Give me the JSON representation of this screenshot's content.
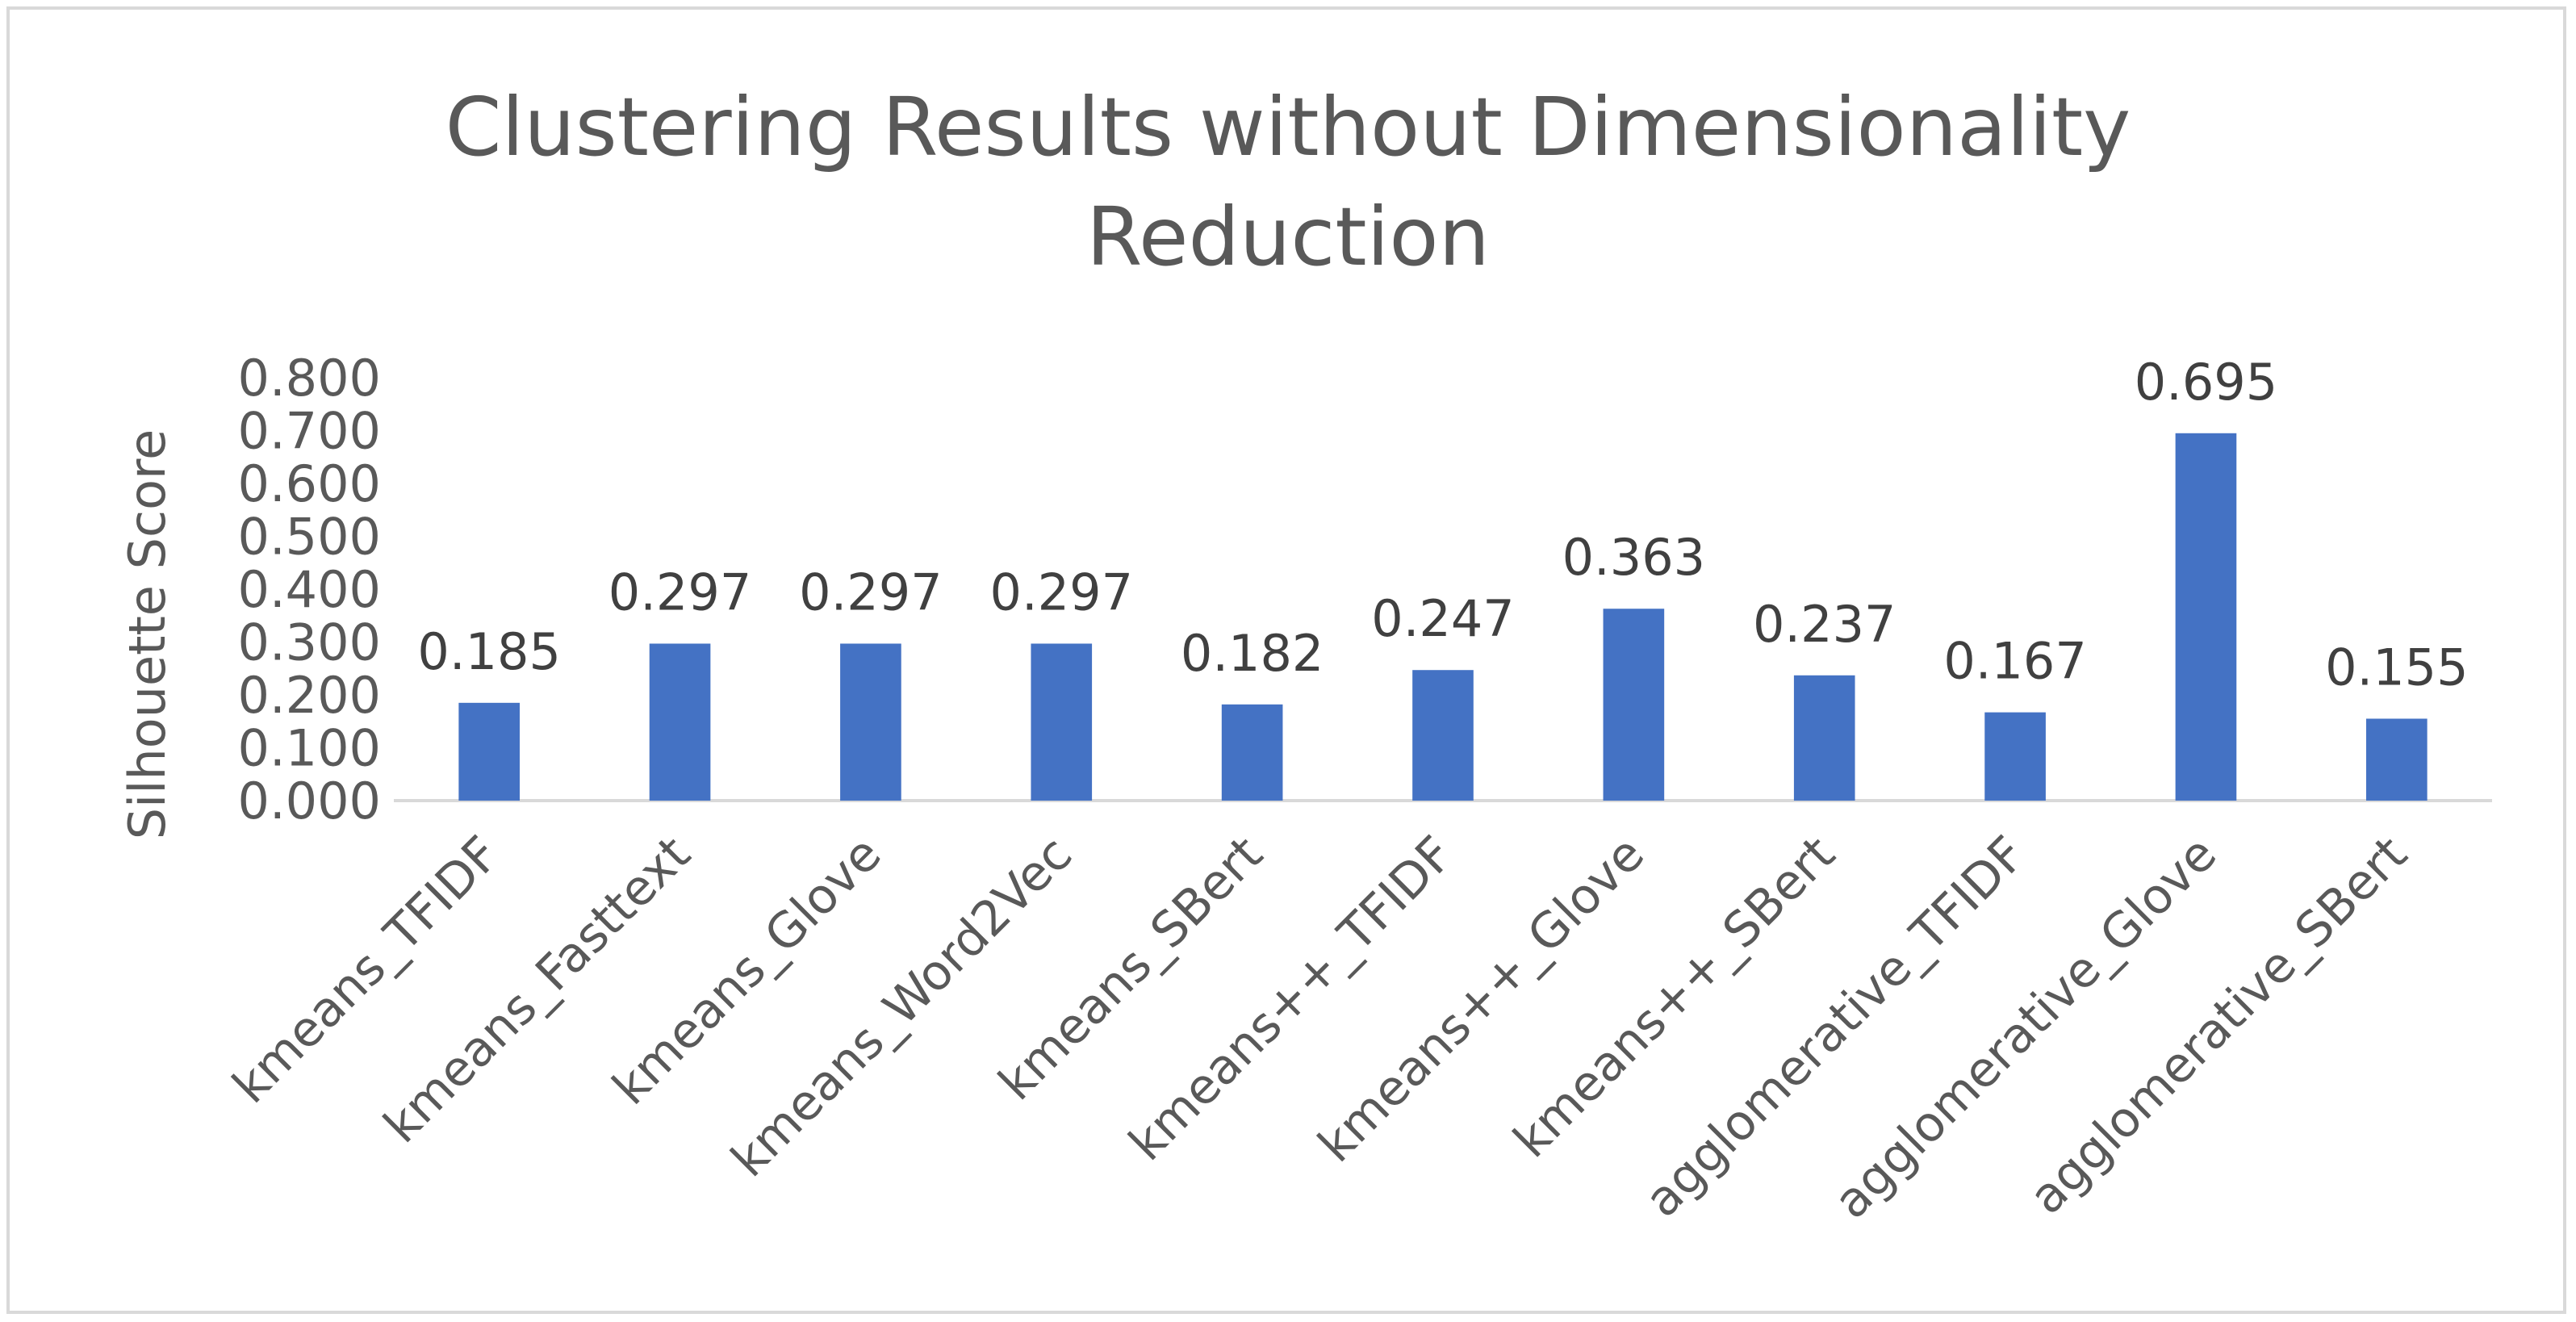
{
  "chart_data": {
    "type": "bar",
    "title_lines": [
      "Clustering Results without Dimensionality",
      "Reduction"
    ],
    "xlabel": "",
    "ylabel": "Silhouette Score",
    "ylim": [
      0,
      0.8
    ],
    "ytick_step": 0.1,
    "ytick_labels": [
      "0.000",
      "0.100",
      "0.200",
      "0.300",
      "0.400",
      "0.500",
      "0.600",
      "0.700",
      "0.800"
    ],
    "categories": [
      "kmeans_TFIDF",
      "kmeans_Fasttext",
      "kmeans_Glove",
      "kmeans_Word2Vec",
      "kmeans_SBert",
      "kmeans++_TFIDF",
      "kmeans++_Glove",
      "kmeans++_SBert",
      "agglomerative_TFIDF",
      "agglomerative_Glove",
      "agglomerative_SBert"
    ],
    "values": [
      0.185,
      0.297,
      0.297,
      0.297,
      0.182,
      0.247,
      0.363,
      0.237,
      0.167,
      0.695,
      0.155
    ],
    "data_labels": [
      "0.185",
      "0.297",
      "0.297",
      "0.297",
      "0.182",
      "0.247",
      "0.363",
      "0.237",
      "0.167",
      "0.695",
      "0.155"
    ],
    "grid": false,
    "legend": "none",
    "colors": {
      "bar": "#4472c4",
      "axis": "#d9d9d9",
      "text": "#595959",
      "frame": "#d9d9d9"
    }
  }
}
